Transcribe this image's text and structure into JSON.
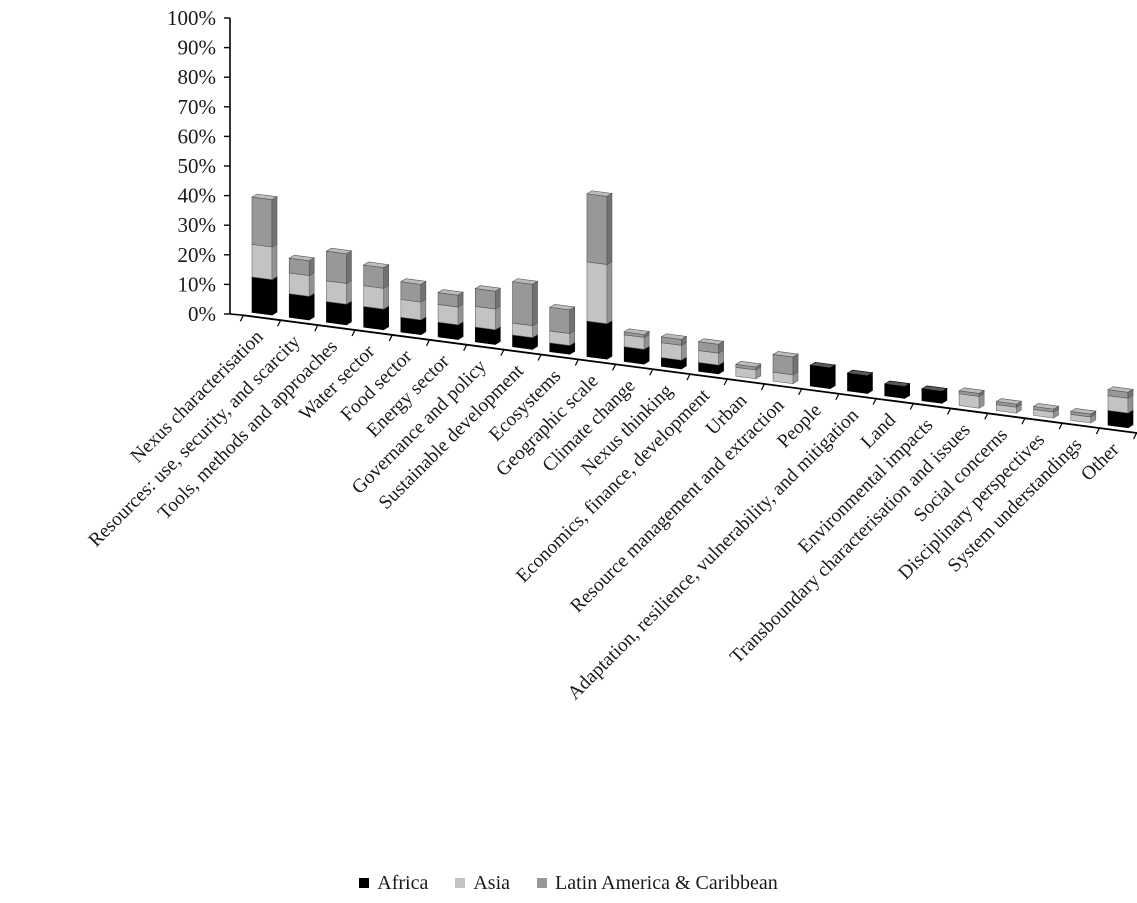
{
  "chart_data": {
    "type": "bar",
    "stacked": true,
    "view": "3d-perspective",
    "y_tick_labels": [
      "0%",
      "10%",
      "20%",
      "30%",
      "40%",
      "50%",
      "60%",
      "70%",
      "80%",
      "90%",
      "100%"
    ],
    "ylim": [
      0,
      100
    ],
    "grid": false,
    "legend_position": "bottom",
    "categories": [
      "Nexus characterisation",
      "Resources: use, security, and scarcity",
      "Tools, methods and approaches",
      "Water sector",
      "Food sector",
      "Energy sector",
      "Governance and  policy",
      "Sustainable development",
      "Ecosystems",
      "Geographic scale",
      "Climate change",
      "Nexus thinking",
      "Economics, finance, development",
      "Urban",
      "Resource management and extraction",
      "People",
      "Adaptation, resilience, vulnerability, and mitigation",
      "Land",
      "Environmental impacts",
      "Transboundary characterisation and issues",
      "Social concerns",
      "Disciplinary perspectives",
      "System understandings",
      "Other"
    ],
    "series": [
      {
        "name": "Africa",
        "color": "#000000",
        "values": [
          12,
          8,
          7,
          7,
          5,
          5,
          5,
          4,
          3,
          12,
          5,
          3,
          3,
          0,
          0,
          7,
          6,
          4,
          4,
          0,
          0,
          0,
          0,
          5
        ]
      },
      {
        "name": "Asia",
        "color": "#c3c3c3",
        "values": [
          11,
          7,
          7,
          7,
          6,
          6,
          7,
          4,
          4,
          20,
          4,
          5,
          4,
          3,
          3,
          0,
          0,
          0,
          0,
          4,
          2,
          2,
          2,
          5
        ]
      },
      {
        "name": "Latin America & Caribbean",
        "color": "#989898",
        "values": [
          16,
          5,
          10,
          7,
          6,
          4,
          6,
          14,
          8,
          23,
          1,
          2,
          3,
          1,
          6,
          0,
          0,
          0,
          0,
          1,
          1,
          1,
          1,
          2
        ]
      }
    ]
  }
}
